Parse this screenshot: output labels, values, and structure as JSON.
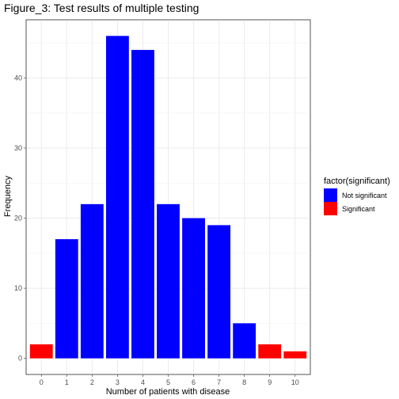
{
  "chart_data": {
    "type": "bar",
    "title": "Figure_3: Test results of multiple testing",
    "xlabel": "Number of patients with disease",
    "ylabel": "Frequency",
    "categories": [
      "0",
      "1",
      "2",
      "3",
      "4",
      "5",
      "6",
      "7",
      "8",
      "9",
      "10"
    ],
    "values": [
      2,
      17,
      22,
      46,
      44,
      22,
      20,
      19,
      5,
      2,
      1
    ],
    "groups": [
      "Significant",
      "Not significant",
      "Not significant",
      "Not significant",
      "Not significant",
      "Not significant",
      "Not significant",
      "Not significant",
      "Not significant",
      "Significant",
      "Significant"
    ],
    "y_ticks": [
      0,
      10,
      20,
      30,
      40
    ],
    "ylim": [
      -2.3,
      48.3
    ],
    "grid": true,
    "legend": {
      "title": "factor(significant)",
      "position": "right",
      "entries": [
        {
          "label": "Not significant",
          "color": "#0000ff"
        },
        {
          "label": "Significant",
          "color": "#ff0000"
        }
      ]
    },
    "colors": {
      "Not significant": "#0000ff",
      "Significant": "#ff0000"
    }
  }
}
